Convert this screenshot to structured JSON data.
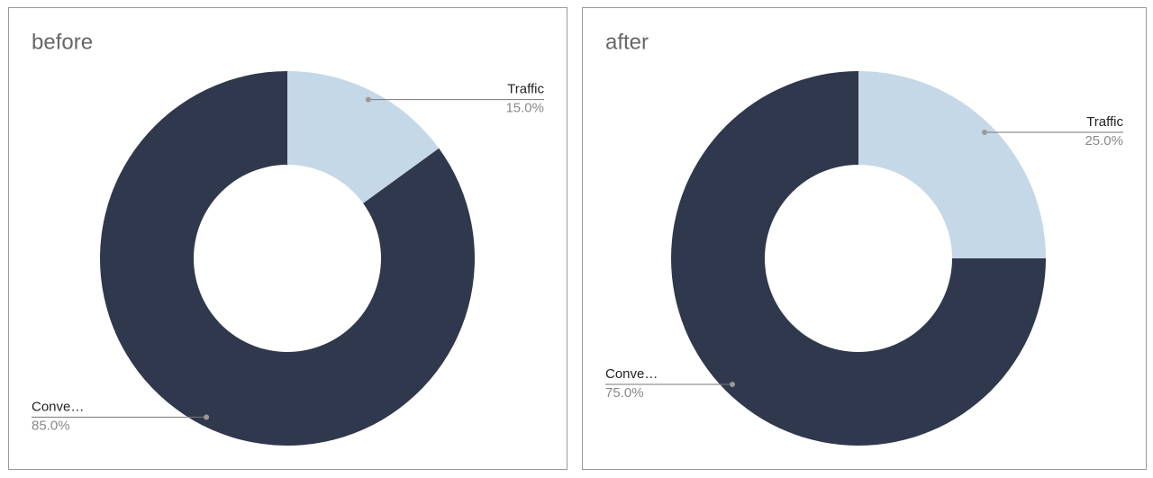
{
  "chart_data": [
    {
      "type": "pie",
      "title": "before",
      "categories": [
        "Traffic",
        "Conve…"
      ],
      "values": [
        15,
        85
      ],
      "value_labels": [
        "15.0%",
        "85.0%"
      ],
      "colors": [
        "#c5d8e8",
        "#2f384c"
      ]
    },
    {
      "type": "pie",
      "title": "after",
      "categories": [
        "Traffic",
        "Conve…"
      ],
      "values": [
        25,
        75
      ],
      "value_labels": [
        "25.0%",
        "75.0%"
      ],
      "colors": [
        "#c5d8e8",
        "#2f384c"
      ]
    }
  ]
}
